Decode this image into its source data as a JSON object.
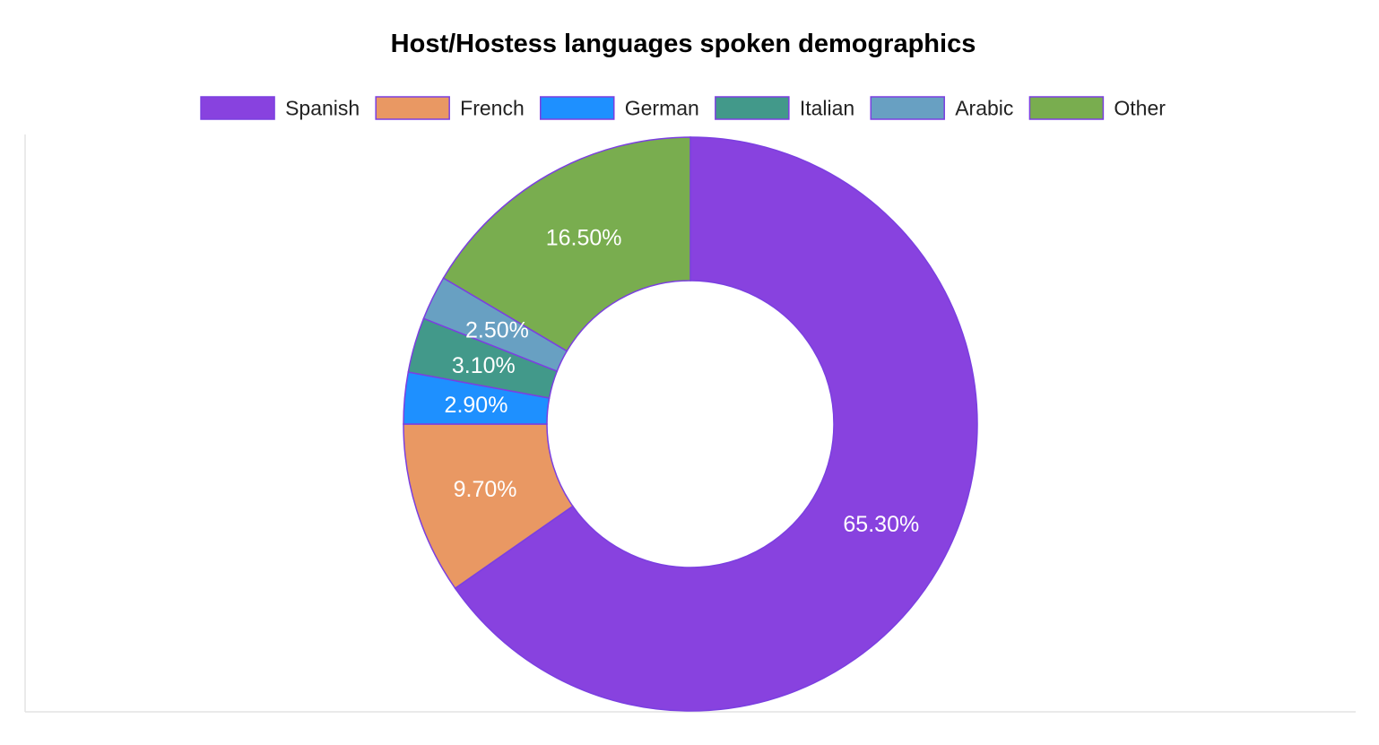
{
  "chart_data": {
    "type": "pie",
    "variant": "donut",
    "title": "Host/Hostess languages spoken demographics",
    "legend_position": "top",
    "slice_border_color": "#7b3fe0",
    "slices": [
      {
        "label": "Spanish",
        "value": 65.3,
        "display": "65.30%",
        "color": "#8842df"
      },
      {
        "label": "French",
        "value": 9.7,
        "display": "9.70%",
        "color": "#e99863"
      },
      {
        "label": "German",
        "value": 2.9,
        "display": "2.90%",
        "color": "#1e90ff"
      },
      {
        "label": "Italian",
        "value": 3.1,
        "display": "3.10%",
        "color": "#42998a"
      },
      {
        "label": "Arabic",
        "value": 2.5,
        "display": "2.50%",
        "color": "#68a0c2"
      },
      {
        "label": "Other",
        "value": 16.5,
        "display": "16.50%",
        "color": "#79ad4f"
      }
    ]
  }
}
